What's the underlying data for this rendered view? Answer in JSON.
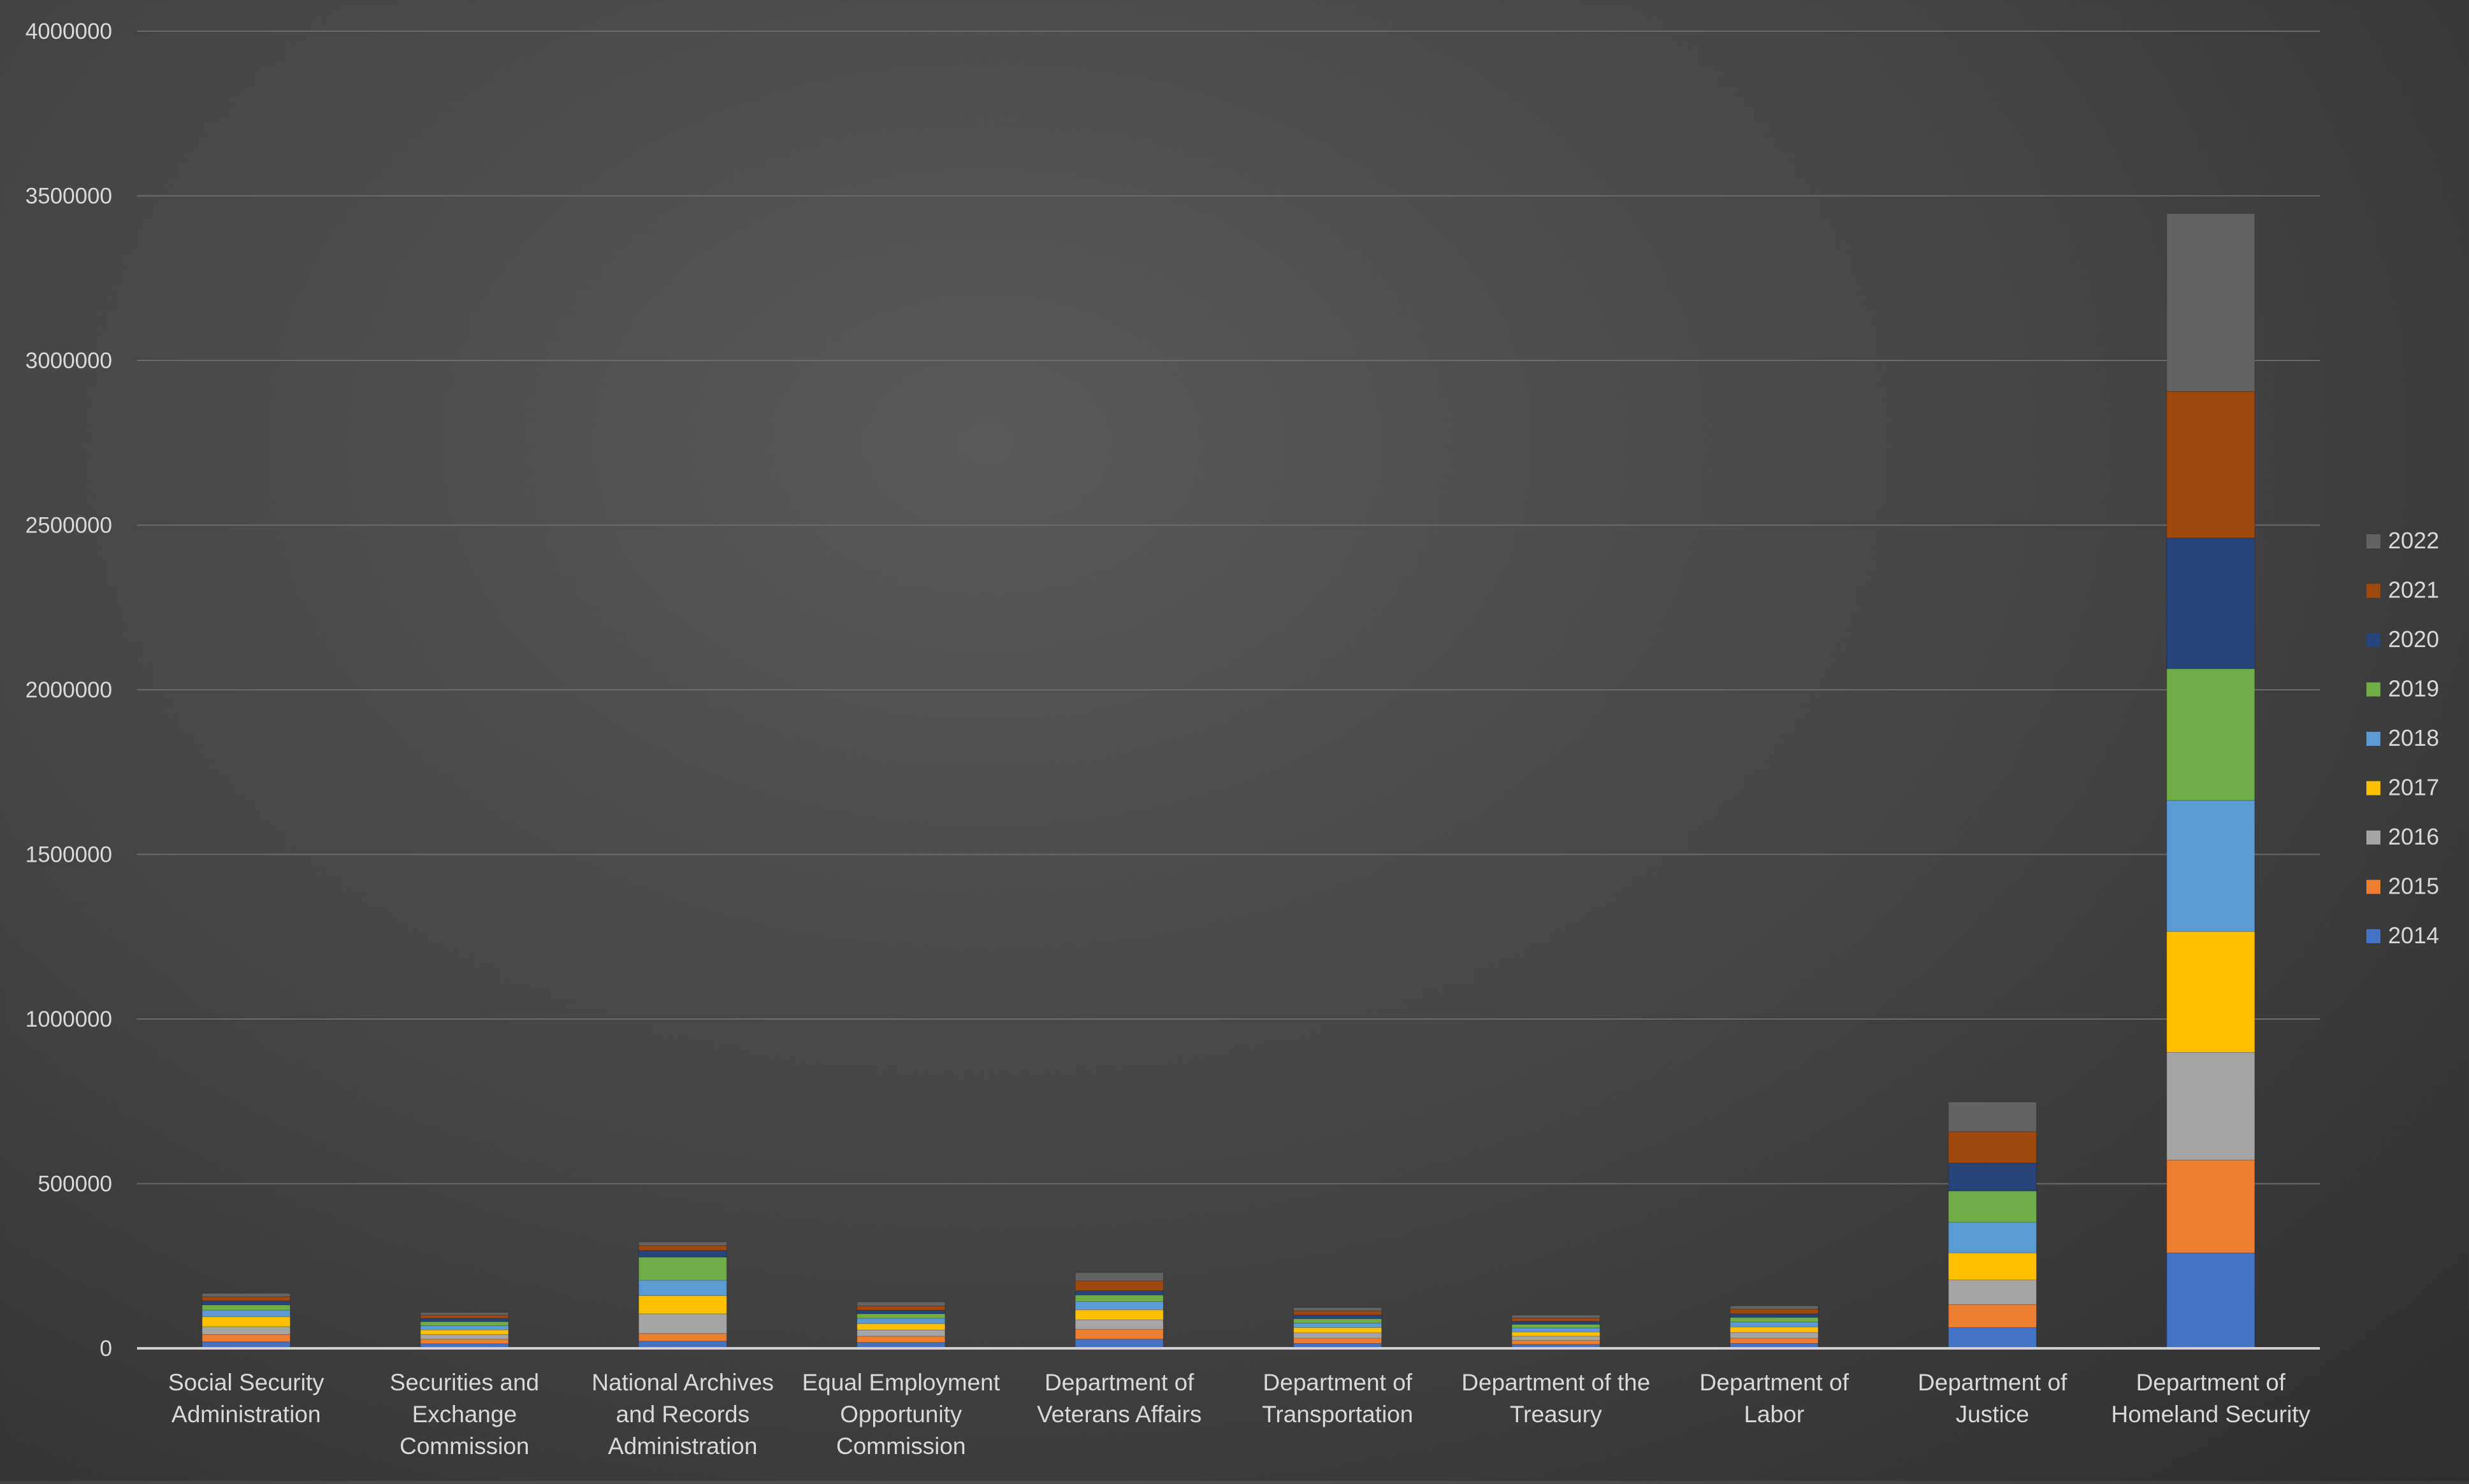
{
  "chart_data": {
    "type": "bar",
    "stacked": true,
    "title": "",
    "xlabel": "",
    "ylabel": "",
    "ylim": [
      0,
      4000000
    ],
    "yticks": [
      0,
      500000,
      1000000,
      1500000,
      2000000,
      2500000,
      3000000,
      3500000,
      4000000
    ],
    "grid": true,
    "legend_position": "right",
    "categories": [
      "Social Security Administration",
      "Securities and Exchange Commission",
      "National Archives and Records Administration",
      "Equal Employment Opportunity Commission",
      "Department of Veterans Affairs",
      "Department of Transportation",
      "Department of the Treasury",
      "Department of Labor",
      "Department of Justice",
      "Department of Homeland Security"
    ],
    "category_lines": [
      [
        "Social Security",
        "Administration"
      ],
      [
        "Securities and",
        "Exchange",
        "Commission"
      ],
      [
        "National Archives",
        "and Records",
        "Administration"
      ],
      [
        "Equal Employment",
        "Opportunity",
        "Commission"
      ],
      [
        "Department of",
        "Veterans Affairs"
      ],
      [
        "Department of",
        "Transportation"
      ],
      [
        "Department of the",
        "Treasury"
      ],
      [
        "Department of",
        "Labor"
      ],
      [
        "Department of",
        "Justice"
      ],
      [
        "Department of",
        "Homeland Security"
      ]
    ],
    "series": [
      {
        "name": "2014",
        "color": "#4472c4",
        "values": [
          20000,
          14000,
          22000,
          18000,
          28000,
          15000,
          12000,
          15000,
          63000,
          290000
        ]
      },
      {
        "name": "2015",
        "color": "#ed7d31",
        "values": [
          22000,
          14000,
          23000,
          19000,
          30000,
          16000,
          12000,
          16000,
          70000,
          282000
        ]
      },
      {
        "name": "2016",
        "color": "#a5a5a5",
        "values": [
          24000,
          14000,
          60000,
          19000,
          29000,
          16000,
          13000,
          17000,
          75000,
          327000
        ]
      },
      {
        "name": "2017",
        "color": "#ffc000",
        "values": [
          30000,
          14000,
          55000,
          19000,
          30000,
          16000,
          13000,
          17000,
          82000,
          367000
        ]
      },
      {
        "name": "2018",
        "color": "#5b9bd5",
        "values": [
          20000,
          13000,
          47000,
          16000,
          25000,
          14000,
          12000,
          15000,
          93000,
          398000
        ]
      },
      {
        "name": "2019",
        "color": "#70ad47",
        "values": [
          16000,
          12000,
          70000,
          14000,
          20000,
          13000,
          11000,
          14000,
          95000,
          400000
        ]
      },
      {
        "name": "2020",
        "color": "#264478",
        "values": [
          12000,
          10000,
          20000,
          11000,
          13000,
          11000,
          9000,
          11000,
          85000,
          397000
        ]
      },
      {
        "name": "2021",
        "color": "#9e480e",
        "values": [
          13000,
          10000,
          15000,
          13000,
          30000,
          13000,
          10000,
          14000,
          95000,
          445000
        ]
      },
      {
        "name": "2022",
        "color": "#636363",
        "values": [
          10000,
          8000,
          11000,
          12000,
          25000,
          10000,
          9000,
          10000,
          90000,
          540000
        ]
      }
    ]
  }
}
